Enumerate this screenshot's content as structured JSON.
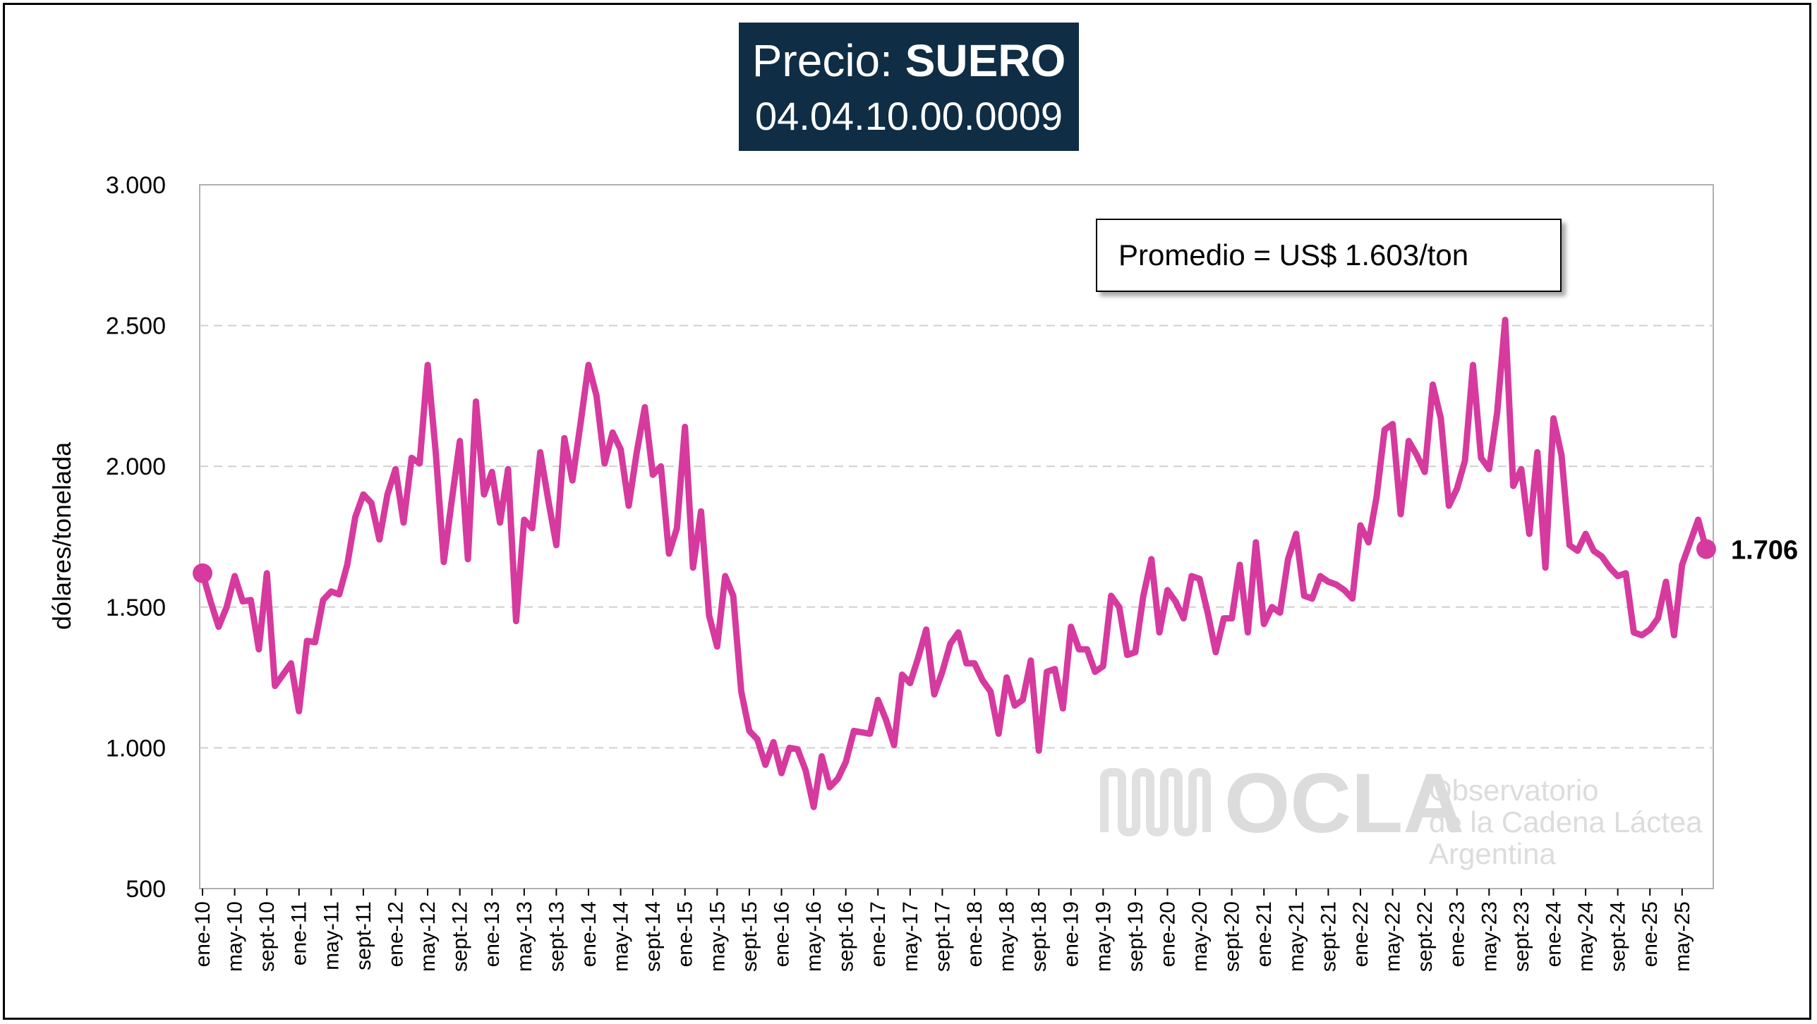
{
  "title": {
    "prefix": "Precio: ",
    "bold": "SUERO",
    "code": "04.04.10.00.0009"
  },
  "annotation": {
    "average_label": "Promedio = US$ 1.603/ton"
  },
  "watermark": {
    "logo": "OCLA",
    "line1": "Observatorio",
    "line2": "de la Cadena Láctea",
    "line3": "Argentina"
  },
  "chart_data": {
    "type": "line",
    "title": "Precio: SUERO 04.04.10.00.0009",
    "ylabel": "dólares/tonelada",
    "xlabel": "",
    "ylim": [
      500,
      3000
    ],
    "yticks": [
      500,
      1000,
      1500,
      2000,
      2500,
      3000
    ],
    "ytick_labels": [
      "500",
      "1.000",
      "1.500",
      "2.000",
      "2.500",
      "3.000"
    ],
    "grid": "horizontal dashed",
    "x_ticks": [
      "ene-10",
      "may-10",
      "sept-10",
      "ene-11",
      "may-11",
      "sept-11",
      "ene-12",
      "may-12",
      "sept-12",
      "ene-13",
      "may-13",
      "sept-13",
      "ene-14",
      "may-14",
      "sept-14",
      "ene-15",
      "may-15",
      "sept-15",
      "ene-16",
      "may-16",
      "sept-16",
      "ene-17",
      "may-17",
      "sept-17",
      "ene-18",
      "may-18",
      "sept-18",
      "ene-19",
      "may-19",
      "sept-19",
      "ene-20",
      "may-20",
      "sept-20",
      "ene-21",
      "may-21",
      "sept-21",
      "ene-22",
      "may-22",
      "sept-22",
      "ene-23",
      "may-23",
      "sept-23",
      "ene-24",
      "may-24",
      "sept-24",
      "ene-25",
      "may-25"
    ],
    "color": "#d63a9e",
    "last_value_label": "1.706",
    "series": [
      {
        "x_start": "ene-10",
        "frequency": "monthly",
        "values": [
          1620,
          1520,
          1430,
          1500,
          1610,
          1520,
          1525,
          1350,
          1620,
          1220,
          1260,
          1300,
          1130,
          1380,
          1375,
          1525,
          1555,
          1545,
          1650,
          1820,
          1900,
          1870,
          1740,
          1900,
          1990,
          1800,
          2030,
          2010,
          2360,
          2050,
          1660,
          1880,
          2090,
          1670,
          2230,
          1900,
          1980,
          1800,
          1990,
          1450,
          1810,
          1780,
          2050,
          1880,
          1720,
          2100,
          1950,
          2150,
          2360,
          2250,
          2010,
          2120,
          2060,
          1860,
          2050,
          2210,
          1970,
          2000,
          1690,
          1780,
          2140,
          1640,
          1840,
          1470,
          1360,
          1610,
          1540,
          1200,
          1060,
          1030,
          940,
          1020,
          910,
          1000,
          995,
          920,
          790,
          970,
          860,
          890,
          950,
          1060,
          1055,
          1050,
          1170,
          1100,
          1010,
          1260,
          1230,
          1320,
          1420,
          1190,
          1270,
          1370,
          1410,
          1300,
          1300,
          1240,
          1200,
          1050,
          1250,
          1150,
          1170,
          1310,
          990,
          1270,
          1280,
          1140,
          1430,
          1350,
          1350,
          1270,
          1290,
          1540,
          1500,
          1330,
          1340,
          1540,
          1670,
          1410,
          1560,
          1520,
          1460,
          1610,
          1600,
          1480,
          1340,
          1460,
          1460,
          1650,
          1410,
          1730,
          1440,
          1500,
          1480,
          1670,
          1760,
          1540,
          1530,
          1610,
          1590,
          1580,
          1560,
          1530,
          1790,
          1730,
          1890,
          2130,
          2150,
          1830,
          2090,
          2040,
          1980,
          2290,
          2170,
          1860,
          1920,
          2020,
          2360,
          2030,
          1990,
          2190,
          2520,
          1930,
          1990,
          1760,
          2050,
          1640,
          2170,
          2040,
          1720,
          1700,
          1760,
          1700,
          1680,
          1640,
          1610,
          1620,
          1410,
          1400,
          1420,
          1460,
          1590,
          1400,
          1650,
          1730,
          1810,
          1706
        ]
      }
    ]
  }
}
